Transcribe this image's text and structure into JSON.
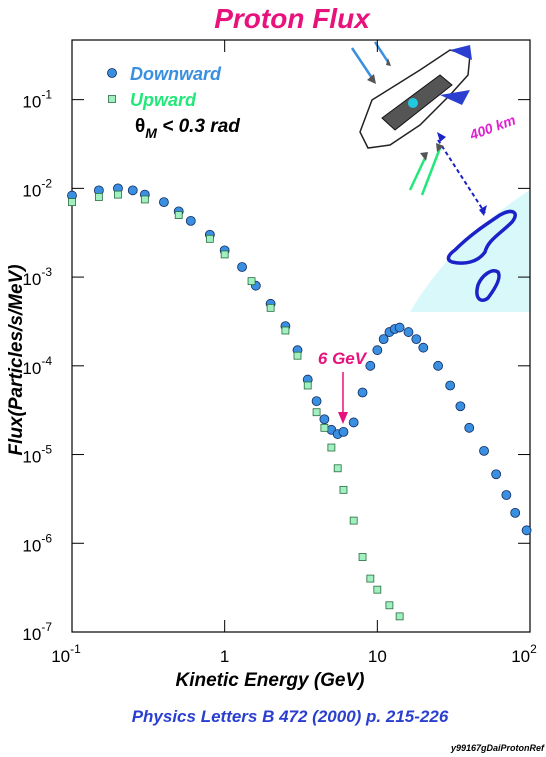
{
  "chart_data": {
    "type": "scatter",
    "title": "Proton Flux",
    "xlabel": "Kinetic Energy (GeV)",
    "ylabel": "Flux(Particles/s/MeV)",
    "log_x": true,
    "log_y": true,
    "xlim": [
      0.1,
      100
    ],
    "ylim": [
      1e-07,
      0.47
    ],
    "xticks": [
      {
        "value": 0.1,
        "label": "10",
        "exponent": "-1"
      },
      1,
      10,
      {
        "value": 100,
        "label": "10",
        "exponent": "2"
      }
    ],
    "yticks": [
      {
        "value": 0.1,
        "label": "10",
        "exponent": "-1"
      },
      {
        "value": 0.01,
        "label": "10",
        "exponent": "-2"
      },
      {
        "value": 0.001,
        "label": "10",
        "exponent": "-3"
      },
      {
        "value": 0.0001,
        "label": "10",
        "exponent": "-4"
      },
      {
        "value": 1e-05,
        "label": "10",
        "exponent": "-5"
      },
      {
        "value": 1e-06,
        "label": "10",
        "exponent": "-6"
      },
      {
        "value": 1e-07,
        "label": "10",
        "exponent": "-7"
      }
    ],
    "series": [
      {
        "name": "Downward",
        "color": "#3a8fe0",
        "marker": "circle",
        "x": [
          0.1,
          0.15,
          0.2,
          0.25,
          0.3,
          0.4,
          0.5,
          0.6,
          0.8,
          1,
          1.3,
          1.6,
          2,
          2.5,
          3,
          3.5,
          4,
          4.5,
          5,
          5.5,
          6,
          7,
          8,
          9,
          10,
          11,
          12,
          13,
          14,
          16,
          18,
          20,
          25,
          30,
          35,
          40,
          50,
          60,
          70,
          80,
          95
        ],
        "values": [
          0.0083,
          0.0095,
          0.01,
          0.0095,
          0.0085,
          0.007,
          0.0055,
          0.0043,
          0.003,
          0.002,
          0.0013,
          0.0008,
          0.0005,
          0.00028,
          0.00015,
          7e-05,
          4e-05,
          2.5e-05,
          1.9e-05,
          1.7e-05,
          1.8e-05,
          2.3e-05,
          5e-05,
          0.0001,
          0.00015,
          0.0002,
          0.00024,
          0.00026,
          0.00027,
          0.00024,
          0.0002,
          0.00016,
          0.0001,
          6e-05,
          3.5e-05,
          2e-05,
          1.1e-05,
          6e-06,
          3.5e-06,
          2.2e-06,
          1.4e-06
        ]
      },
      {
        "name": "Upward",
        "color": "#a0f0c0",
        "marker": "square",
        "x": [
          0.1,
          0.15,
          0.2,
          0.3,
          0.5,
          0.8,
          1,
          1.5,
          2,
          2.5,
          3,
          3.5,
          4,
          4.5,
          5,
          5.5,
          6,
          7,
          8,
          9,
          10,
          12,
          14
        ],
        "values": [
          0.007,
          0.008,
          0.0085,
          0.0075,
          0.005,
          0.0027,
          0.0018,
          0.0009,
          0.00045,
          0.00025,
          0.00013,
          6e-05,
          3e-05,
          2e-05,
          1.2e-05,
          7e-06,
          4e-06,
          1.8e-06,
          7e-07,
          4e-07,
          3e-07,
          2e-07,
          1.5e-07
        ]
      }
    ],
    "legend_position": "upper left",
    "cut_label": {
      "symbol": "θ",
      "subscript": "M",
      "text": " < 0.3 rad"
    },
    "annotations": [
      "6 GeV",
      "400 km"
    ],
    "citation": "Physics Letters B 472 (2000) p. 215-226",
    "footer": "y99167gDaiProtonRef"
  }
}
